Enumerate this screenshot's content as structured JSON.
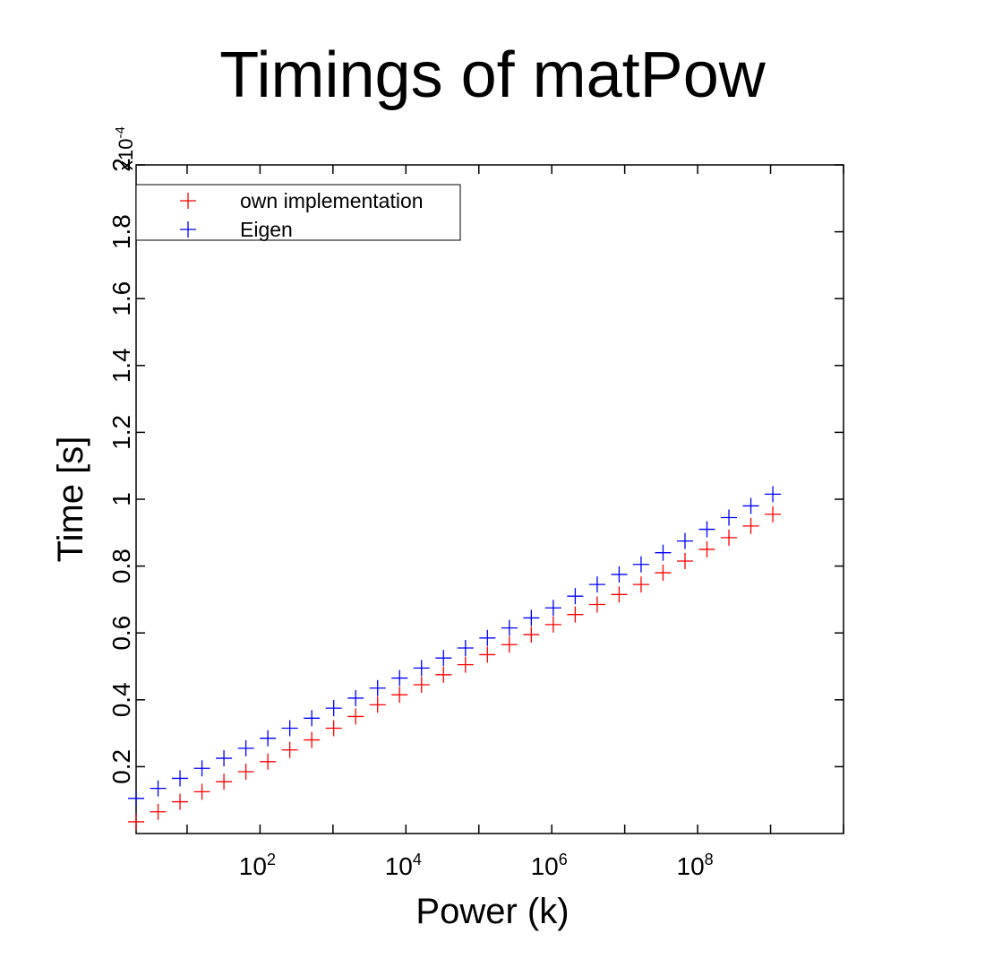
{
  "chart_data": {
    "type": "scatter",
    "title": "Timings of matPow",
    "xlabel": "Power (k)",
    "ylabel": "Time [s]",
    "x_scale": "log",
    "x_tick_labels": [
      "10",
      "10",
      "10",
      "10"
    ],
    "x_tick_exponents": [
      "2",
      "4",
      "6",
      "8"
    ],
    "x_tick_values": [
      100,
      10000,
      1000000,
      100000000
    ],
    "xlim": [
      2,
      10000000000
    ],
    "y_multiplier_base": "x10",
    "y_multiplier_exponent": "-4",
    "y_multiplier": 0.0001,
    "y_tick_labels": [
      "0.2",
      "0.4",
      "0.6",
      "0.8",
      "1",
      "1.2",
      "1.4",
      "1.6",
      "1.8",
      "2"
    ],
    "y_tick_values": [
      2e-05,
      4e-05,
      6e-05,
      8e-05,
      0.0001,
      0.00012,
      0.00014,
      0.00016,
      0.00018,
      0.0002
    ],
    "ylim": [
      0,
      0.0002
    ],
    "grid": false,
    "legend_position": "top-left",
    "x": [
      2,
      4,
      8,
      16,
      32,
      64,
      128,
      256,
      512,
      1024,
      2048,
      4096,
      8192,
      16384,
      32768,
      65536,
      131072,
      262144,
      524288,
      1048576,
      2097152,
      4194304,
      8388608,
      16777216,
      33554432,
      67108864,
      134217728,
      268435456,
      536870912,
      1073741824
    ],
    "series": [
      {
        "name": "own implementation",
        "color": "#ff0000",
        "marker": "+",
        "values": [
          3.5e-06,
          6.5e-06,
          9.5e-06,
          1.25e-05,
          1.55e-05,
          1.85e-05,
          2.15e-05,
          2.5e-05,
          2.8e-05,
          3.15e-05,
          3.5e-05,
          3.85e-05,
          4.15e-05,
          4.45e-05,
          4.75e-05,
          5.05e-05,
          5.35e-05,
          5.65e-05,
          5.95e-05,
          6.25e-05,
          6.55e-05,
          6.85e-05,
          7.15e-05,
          7.45e-05,
          7.8e-05,
          8.15e-05,
          8.5e-05,
          8.85e-05,
          9.2e-05,
          9.55e-05
        ]
      },
      {
        "name": "Eigen",
        "color": "#0000ff",
        "marker": "+",
        "values": [
          1.05e-05,
          1.35e-05,
          1.65e-05,
          1.95e-05,
          2.25e-05,
          2.55e-05,
          2.85e-05,
          3.15e-05,
          3.45e-05,
          3.75e-05,
          4.05e-05,
          4.35e-05,
          4.65e-05,
          4.95e-05,
          5.25e-05,
          5.55e-05,
          5.85e-05,
          6.15e-05,
          6.45e-05,
          6.75e-05,
          7.1e-05,
          7.45e-05,
          7.75e-05,
          8.05e-05,
          8.4e-05,
          8.75e-05,
          9.1e-05,
          9.45e-05,
          9.8e-05,
          0.0001015
        ]
      }
    ]
  }
}
